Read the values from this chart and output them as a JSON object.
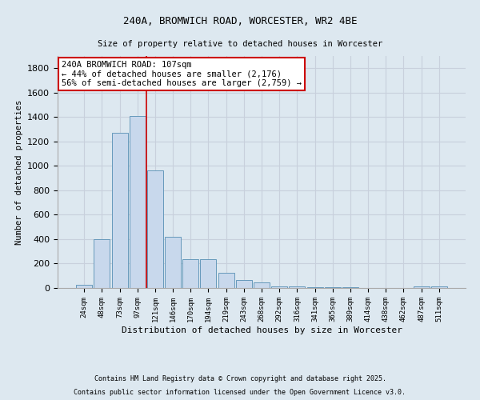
{
  "title_line1": "240A, BROMWICH ROAD, WORCESTER, WR2 4BE",
  "title_line2": "Size of property relative to detached houses in Worcester",
  "xlabel": "Distribution of detached houses by size in Worcester",
  "ylabel": "Number of detached properties",
  "categories": [
    "24sqm",
    "48sqm",
    "73sqm",
    "97sqm",
    "121sqm",
    "146sqm",
    "170sqm",
    "194sqm",
    "219sqm",
    "243sqm",
    "268sqm",
    "292sqm",
    "316sqm",
    "341sqm",
    "365sqm",
    "389sqm",
    "414sqm",
    "438sqm",
    "462sqm",
    "487sqm",
    "511sqm"
  ],
  "values": [
    25,
    400,
    1270,
    1410,
    960,
    420,
    235,
    235,
    125,
    65,
    45,
    15,
    10,
    8,
    5,
    5,
    3,
    2,
    2,
    12,
    12
  ],
  "bar_color": "#c8d8ec",
  "bar_edge_color": "#6699bb",
  "grid_color": "#c8d0dc",
  "background_color": "#dde8f0",
  "vline_x": 3.5,
  "vline_color": "#cc0000",
  "annotation_text": "240A BROMWICH ROAD: 107sqm\n← 44% of detached houses are smaller (2,176)\n56% of semi-detached houses are larger (2,759) →",
  "annotation_box_color": "#ffffff",
  "annotation_box_edge": "#cc0000",
  "footnote1": "Contains HM Land Registry data © Crown copyright and database right 2025.",
  "footnote2": "Contains public sector information licensed under the Open Government Licence v3.0.",
  "ylim": [
    0,
    1900
  ]
}
